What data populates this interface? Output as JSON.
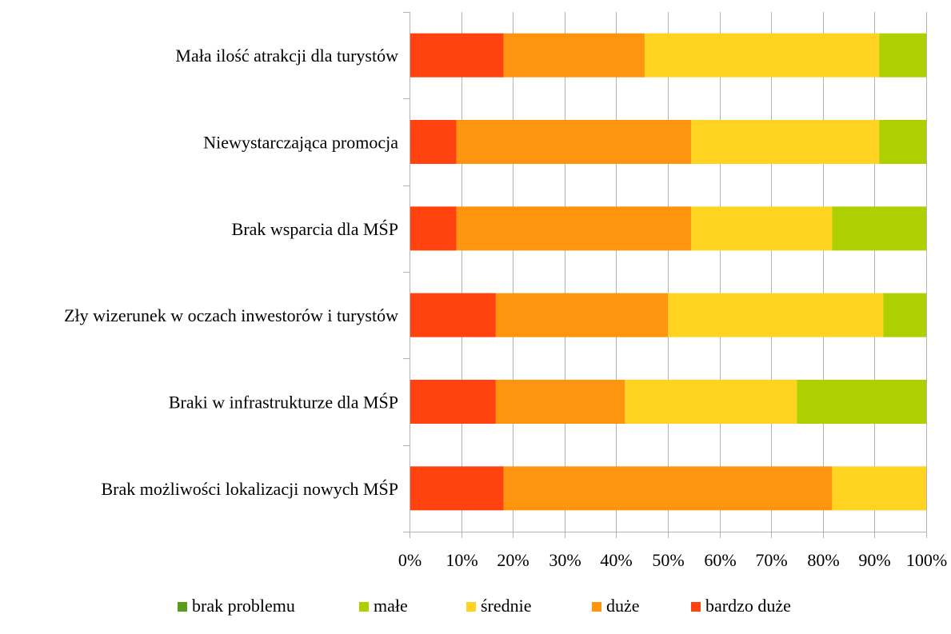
{
  "chart_data": {
    "type": "bar",
    "orientation": "horizontal",
    "stacked": "percent",
    "categories": [
      "Mała ilość atrakcji dla turystów",
      "Niewystarczająca promocja",
      "Brak wsparcia dla MŚP",
      "Zły wizerunek w oczach inwestorów i turystów",
      "Braki w infrastrukturze dla MŚP",
      "Brak możliwości lokalizacji nowych MŚP"
    ],
    "series": [
      {
        "name": "bardzo duże",
        "color": "#ff420e",
        "values": [
          18.2,
          9.1,
          9.1,
          16.7,
          16.7,
          18.2
        ]
      },
      {
        "name": "duże",
        "color": "#ff950e",
        "values": [
          27.3,
          45.4,
          45.4,
          33.3,
          25.0,
          63.6
        ]
      },
      {
        "name": "średnie",
        "color": "#ffd320",
        "values": [
          45.4,
          36.4,
          27.3,
          41.7,
          33.3,
          18.2
        ]
      },
      {
        "name": "małe",
        "color": "#aecf00",
        "values": [
          9.1,
          9.1,
          18.2,
          8.3,
          25.0,
          0
        ]
      },
      {
        "name": "brak problemu",
        "color": "#579d1c",
        "values": [
          0,
          0,
          0,
          0,
          0,
          0
        ]
      }
    ],
    "legend_order": [
      "brak problemu",
      "małe",
      "średnie",
      "duże",
      "bardzo duże"
    ],
    "xticks": [
      "0%",
      "10%",
      "20%",
      "30%",
      "40%",
      "50%",
      "60%",
      "70%",
      "80%",
      "90%",
      "100%"
    ],
    "xlim": [
      0,
      100
    ],
    "title": "",
    "xlabel": "",
    "ylabel": "",
    "grid": true,
    "legend_position": "bottom",
    "colors": {
      "grid": "#b3b3b3",
      "axis": "#b3b3b3"
    }
  }
}
